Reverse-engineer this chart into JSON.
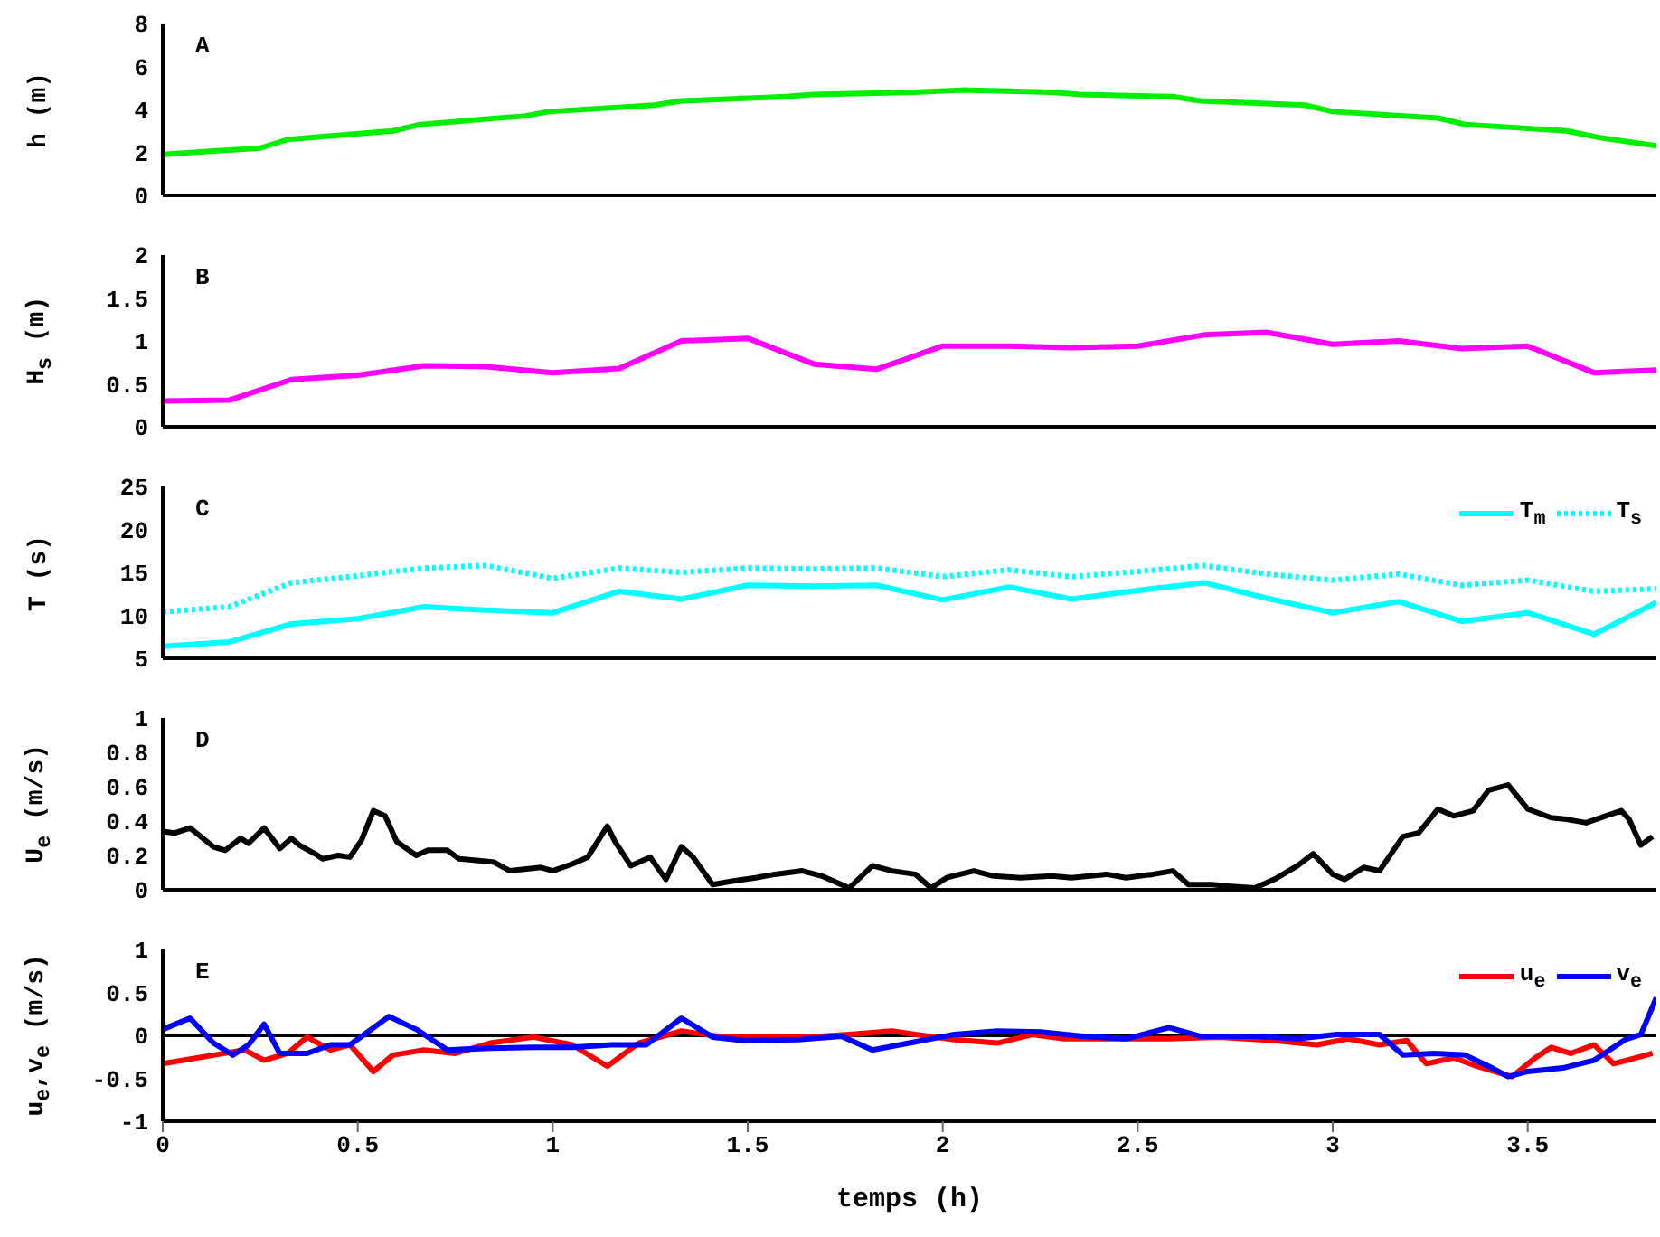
{
  "chart_data": [
    {
      "type": "line",
      "ylabel": "h (m)",
      "annotations": [
        "A"
      ],
      "tick_labels": "y",
      "xlim": [
        0,
        3.83
      ],
      "xticks": [
        0,
        0.5,
        1,
        1.5,
        2,
        2.5,
        3,
        3.5
      ],
      "ylim": [
        0,
        8
      ],
      "yticks": [
        0,
        2,
        4,
        6,
        8
      ],
      "x": [
        0,
        0.25,
        0.32,
        0.59,
        0.66,
        0.93,
        0.99,
        1.26,
        1.33,
        1.6,
        1.67,
        1.93,
        2.05,
        2.28,
        2.35,
        2.59,
        2.66,
        2.93,
        3.0,
        3.27,
        3.34,
        3.6,
        3.68,
        3.83
      ],
      "series": [
        {
          "color": "#00ee00",
          "values": [
            1.9,
            2.2,
            2.6,
            3.0,
            3.3,
            3.7,
            3.9,
            4.2,
            4.4,
            4.6,
            4.7,
            4.8,
            4.9,
            4.8,
            4.7,
            4.6,
            4.4,
            4.2,
            3.9,
            3.6,
            3.3,
            3.0,
            2.7,
            2.3
          ]
        }
      ]
    },
    {
      "type": "line",
      "ylabel": "H$_{s}$ (m)",
      "annotations": [
        "B"
      ],
      "tick_labels": "y",
      "xlim": [
        0,
        3.83
      ],
      "xticks": [
        0,
        0.5,
        1,
        1.5,
        2,
        2.5,
        3,
        3.5
      ],
      "ylim": [
        0,
        2
      ],
      "yticks": [
        0,
        0.5,
        1,
        1.5,
        2
      ],
      "x": [
        0,
        0.17,
        0.33,
        0.5,
        0.67,
        0.83,
        1,
        1.17,
        1.33,
        1.5,
        1.67,
        1.83,
        2,
        2.17,
        2.33,
        2.5,
        2.67,
        2.83,
        3,
        3.17,
        3.33,
        3.5,
        3.67,
        3.83
      ],
      "series": [
        {
          "color": "#ff00ff",
          "values": [
            0.3,
            0.31,
            0.55,
            0.6,
            0.71,
            0.7,
            0.63,
            0.68,
            1.0,
            1.03,
            0.73,
            0.67,
            0.94,
            0.94,
            0.92,
            0.94,
            1.07,
            1.1,
            0.96,
            1.0,
            0.91,
            0.94,
            0.63,
            0.66
          ]
        }
      ]
    },
    {
      "type": "line",
      "ylabel": "T (s)",
      "annotations": [
        "C"
      ],
      "tick_labels": "y",
      "legend": "top right",
      "xlim": [
        0,
        3.83
      ],
      "xticks": [
        0,
        0.5,
        1,
        1.5,
        2,
        2.5,
        3,
        3.5
      ],
      "ylim": [
        5,
        25
      ],
      "yticks": [
        5,
        10,
        15,
        20,
        25
      ],
      "x": [
        0,
        0.17,
        0.33,
        0.5,
        0.67,
        0.83,
        1,
        1.17,
        1.33,
        1.5,
        1.67,
        1.83,
        2,
        2.17,
        2.33,
        2.5,
        2.67,
        2.83,
        3,
        3.17,
        3.33,
        3.5,
        3.67,
        3.83
      ],
      "series": [
        {
          "name": "T$_{m}$",
          "color": "#00ffff",
          "line_style": "solid",
          "values": [
            6.4,
            6.9,
            9,
            9.6,
            11,
            10.6,
            10.3,
            12.8,
            11.9,
            13.5,
            13.4,
            13.5,
            11.8,
            13.3,
            11.9,
            12.9,
            13.8,
            12,
            10.3,
            11.6,
            9.3,
            10.3,
            7.8,
            11.5
          ]
        },
        {
          "name": "T$_{s}$",
          "color": "#00ffff",
          "line_style": "dotted",
          "values": [
            10.4,
            11,
            13.8,
            14.6,
            15.5,
            15.8,
            14.3,
            15.5,
            15,
            15.5,
            15.4,
            15.5,
            14.5,
            15.3,
            14.5,
            15.1,
            15.8,
            14.8,
            14.1,
            14.8,
            13.5,
            14.1,
            12.8,
            13.1
          ]
        }
      ]
    },
    {
      "type": "line",
      "ylabel": "U$_{e}$ (m/s)",
      "annotations": [
        "D"
      ],
      "tick_labels": "y",
      "xlim": [
        0,
        3.83
      ],
      "xticks": [
        0,
        0.5,
        1,
        1.5,
        2,
        2.5,
        3,
        3.5
      ],
      "ylim": [
        0,
        1
      ],
      "yticks": [
        0,
        0.2,
        0.4,
        0.6,
        0.8,
        1
      ],
      "series": [
        {
          "color": "#000000",
          "x": [
            0,
            0.03,
            0.07,
            0.13,
            0.16,
            0.2,
            0.22,
            0.26,
            0.3,
            0.33,
            0.35,
            0.39,
            0.41,
            0.45,
            0.48,
            0.51,
            0.54,
            0.57,
            0.6,
            0.65,
            0.68,
            0.73,
            0.76,
            0.81,
            0.85,
            0.89,
            0.97,
            1.0,
            1.05,
            1.09,
            1.14,
            1.16,
            1.2,
            1.25,
            1.29,
            1.33,
            1.36,
            1.41,
            1.46,
            1.52,
            1.57,
            1.64,
            1.69,
            1.76,
            1.82,
            1.87,
            1.93,
            1.97,
            2.01,
            2.08,
            2.13,
            2.2,
            2.28,
            2.33,
            2.42,
            2.47,
            2.54,
            2.59,
            2.63,
            2.69,
            2.74,
            2.8,
            2.85,
            2.91,
            2.95,
            3.0,
            3.03,
            3.08,
            3.12,
            3.18,
            3.22,
            3.27,
            3.31,
            3.36,
            3.4,
            3.45,
            3.5,
            3.56,
            3.6,
            3.65,
            3.7,
            3.74,
            3.76,
            3.79,
            3.82
          ],
          "values": [
            0.34,
            0.33,
            0.36,
            0.25,
            0.23,
            0.3,
            0.27,
            0.36,
            0.24,
            0.3,
            0.26,
            0.21,
            0.18,
            0.2,
            0.19,
            0.29,
            0.46,
            0.43,
            0.28,
            0.2,
            0.23,
            0.23,
            0.18,
            0.17,
            0.16,
            0.11,
            0.13,
            0.11,
            0.15,
            0.19,
            0.37,
            0.28,
            0.14,
            0.19,
            0.06,
            0.25,
            0.19,
            0.03,
            0.05,
            0.07,
            0.09,
            0.11,
            0.08,
            0.01,
            0.14,
            0.11,
            0.09,
            0.01,
            0.07,
            0.11,
            0.08,
            0.07,
            0.08,
            0.07,
            0.09,
            0.07,
            0.09,
            0.11,
            0.03,
            0.03,
            0.02,
            0.01,
            0.06,
            0.14,
            0.21,
            0.09,
            0.06,
            0.13,
            0.11,
            0.31,
            0.33,
            0.47,
            0.43,
            0.46,
            0.58,
            0.61,
            0.47,
            0.42,
            0.41,
            0.39,
            0.43,
            0.46,
            0.41,
            0.26,
            0.31
          ]
        }
      ]
    },
    {
      "type": "line",
      "ylabel": "u$_{e}$,v$_{e}$ (m/s)",
      "xlabel": "temps (h)",
      "annotations": [
        "E"
      ],
      "legend": "top right",
      "xlim": [
        0,
        3.83
      ],
      "xticks": [
        0,
        0.5,
        1,
        1.5,
        2,
        2.5,
        3,
        3.5
      ],
      "ylim": [
        -1,
        1
      ],
      "yticks": [
        -1,
        -0.5,
        0,
        0.5,
        1
      ],
      "ref_lines": [
        {
          "axis": "y",
          "value": 0,
          "color": "#000000"
        }
      ],
      "series": [
        {
          "name": "u$_{e}$",
          "color": "#ff0000",
          "x": [
            0,
            0.13,
            0.21,
            0.26,
            0.32,
            0.37,
            0.43,
            0.48,
            0.54,
            0.59,
            0.67,
            0.75,
            0.84,
            0.95,
            1.05,
            1.14,
            1.22,
            1.33,
            1.44,
            1.54,
            1.65,
            1.76,
            1.87,
            1.93,
            2.03,
            2.14,
            2.23,
            2.31,
            2.44,
            2.58,
            2.71,
            2.85,
            2.96,
            3.04,
            3.12,
            3.19,
            3.24,
            3.31,
            3.37,
            3.46,
            3.52,
            3.56,
            3.61,
            3.67,
            3.72,
            3.78,
            3.82
          ],
          "values": [
            -0.33,
            -0.23,
            -0.17,
            -0.29,
            -0.21,
            -0.02,
            -0.17,
            -0.11,
            -0.42,
            -0.23,
            -0.17,
            -0.21,
            -0.09,
            -0.02,
            -0.11,
            -0.36,
            -0.09,
            0.05,
            -0.02,
            -0.02,
            -0.02,
            0.01,
            0.05,
            0.01,
            -0.05,
            -0.09,
            0.01,
            -0.04,
            -0.04,
            -0.04,
            -0.02,
            -0.06,
            -0.11,
            -0.04,
            -0.11,
            -0.06,
            -0.33,
            -0.26,
            -0.36,
            -0.48,
            -0.26,
            -0.14,
            -0.21,
            -0.11,
            -0.33,
            -0.26,
            -0.21
          ]
        },
        {
          "name": "v$_{e}$",
          "color": "#0000ff",
          "x": [
            0,
            0.07,
            0.13,
            0.18,
            0.22,
            0.26,
            0.3,
            0.37,
            0.43,
            0.48,
            0.58,
            0.65,
            0.73,
            0.84,
            0.95,
            1.05,
            1.15,
            1.24,
            1.33,
            1.41,
            1.49,
            1.63,
            1.74,
            1.82,
            1.89,
            2.03,
            2.14,
            2.25,
            2.36,
            2.47,
            2.58,
            2.66,
            2.8,
            2.91,
            3.01,
            3.12,
            3.18,
            3.26,
            3.34,
            3.4,
            3.45,
            3.5,
            3.59,
            3.67,
            3.75,
            3.79,
            3.83
          ],
          "values": [
            0.07,
            0.2,
            -0.09,
            -0.23,
            -0.11,
            0.13,
            -0.21,
            -0.21,
            -0.11,
            -0.11,
            0.22,
            0.07,
            -0.17,
            -0.15,
            -0.14,
            -0.14,
            -0.11,
            -0.11,
            0.2,
            -0.02,
            -0.06,
            -0.05,
            -0.01,
            -0.17,
            -0.11,
            0.01,
            0.05,
            0.04,
            -0.01,
            -0.04,
            0.09,
            -0.01,
            -0.01,
            -0.04,
            0.01,
            0.01,
            -0.23,
            -0.21,
            -0.23,
            -0.36,
            -0.48,
            -0.42,
            -0.38,
            -0.29,
            -0.05,
            0.01,
            0.44
          ]
        }
      ]
    }
  ]
}
